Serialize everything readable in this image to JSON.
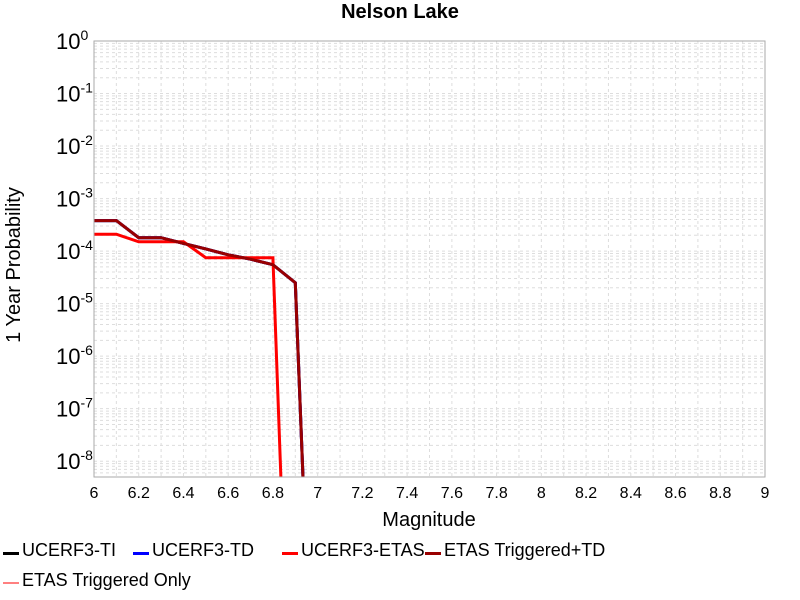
{
  "chart_data": {
    "type": "line",
    "title": "Nelson Lake",
    "xlabel": "Magnitude",
    "ylabel": "1 Year Probability",
    "xscale": "linear",
    "yscale": "log",
    "xlim": [
      6,
      9
    ],
    "ylim": [
      5e-09,
      1
    ],
    "grid": true,
    "legend_position": "bottom",
    "x_ticks": [
      "6",
      "6.2",
      "6.4",
      "6.6",
      "6.8",
      "7",
      "7.2",
      "7.4",
      "7.6",
      "7.8",
      "8",
      "8.2",
      "8.4",
      "8.6",
      "8.8",
      "9"
    ],
    "y_ticks": [
      {
        "base": "10",
        "exp": "0"
      },
      {
        "base": "10",
        "exp": "-1"
      },
      {
        "base": "10",
        "exp": "-2"
      },
      {
        "base": "10",
        "exp": "-3"
      },
      {
        "base": "10",
        "exp": "-4"
      },
      {
        "base": "10",
        "exp": "-5"
      },
      {
        "base": "10",
        "exp": "-6"
      },
      {
        "base": "10",
        "exp": "-7"
      },
      {
        "base": "10",
        "exp": "-8"
      }
    ],
    "series": [
      {
        "name": "UCERF3-TI",
        "color": "#000000",
        "x": [
          6.0,
          6.1,
          6.2,
          6.3,
          6.4,
          6.5,
          6.6,
          6.7,
          6.8,
          6.9,
          6.95
        ],
        "y": [
          0.00038,
          0.00038,
          0.00018,
          0.00018,
          0.00014,
          0.00011,
          8.5e-05,
          7e-05,
          5.5e-05,
          2.5e-05,
          1e-10
        ]
      },
      {
        "name": "UCERF3-TD",
        "color": "#0000ff",
        "x": [
          6.0,
          6.1,
          6.2,
          6.3,
          6.4,
          6.5,
          6.6,
          6.7,
          6.8,
          6.9,
          6.95
        ],
        "y": [
          0.00038,
          0.00038,
          0.00018,
          0.00018,
          0.00014,
          0.00011,
          8.5e-05,
          7e-05,
          5.5e-05,
          2.5e-05,
          1e-10
        ]
      },
      {
        "name": "UCERF3-ETAS",
        "color": "#ff0000",
        "x": [
          6.0,
          6.1,
          6.2,
          6.3,
          6.4,
          6.5,
          6.6,
          6.7,
          6.8,
          6.85
        ],
        "y": [
          0.00021,
          0.00021,
          0.00015,
          0.00015,
          0.00015,
          7.5e-05,
          7.5e-05,
          7.5e-05,
          7.5e-05,
          1e-10
        ]
      },
      {
        "name": "ETAS Triggered+TD",
        "color": "#990000",
        "x": [
          6.0,
          6.1,
          6.2,
          6.3,
          6.4,
          6.5,
          6.6,
          6.7,
          6.8,
          6.9,
          6.95
        ],
        "y": [
          0.00038,
          0.00038,
          0.00018,
          0.00018,
          0.00014,
          0.00011,
          8.5e-05,
          7e-05,
          5.5e-05,
          2.5e-05,
          1e-10
        ]
      },
      {
        "name": "ETAS Triggered Only",
        "color": "#ff8080",
        "x": [],
        "y": []
      }
    ]
  }
}
